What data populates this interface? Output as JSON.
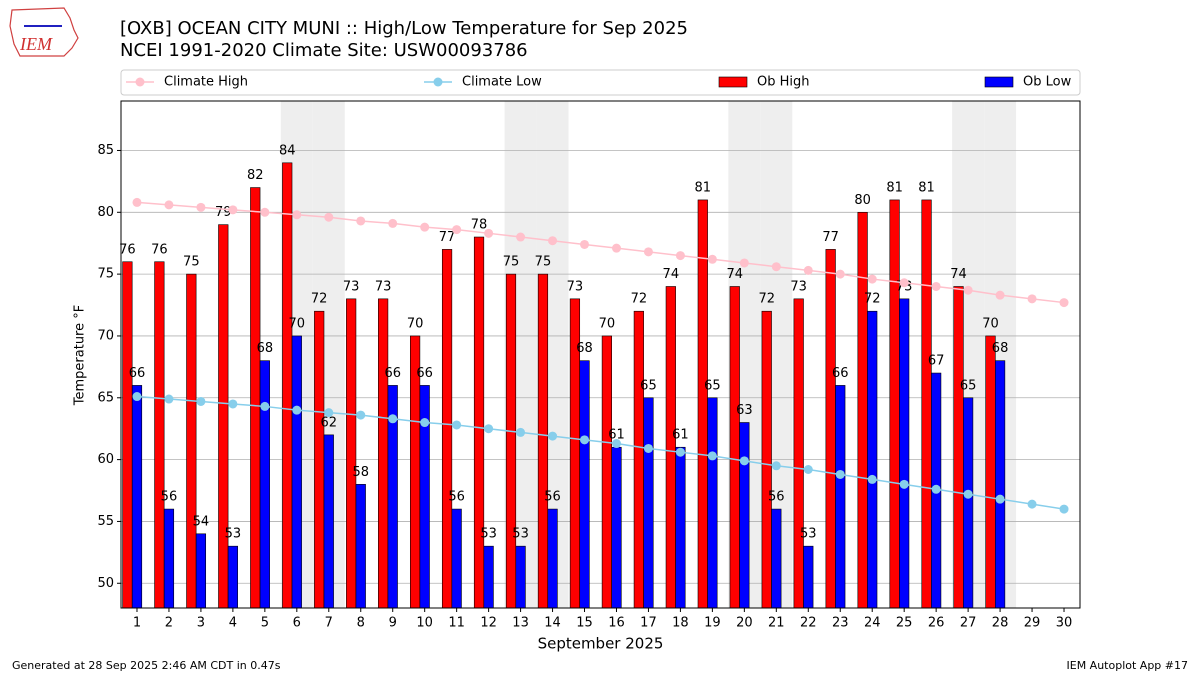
{
  "chart_data": {
    "type": "bar",
    "title": "[OXB] OCEAN CITY MUNI :: High/Low Temperature for Sep 2025",
    "subtitle": "NCEI 1991-2020 Climate Site: USW00093786",
    "x_label": "September 2025",
    "y_label": "Temperature °F",
    "footer_left": "Generated at 28 Sep 2025 2:46 AM CDT in 0.47s",
    "footer_right": "IEM Autoplot App #17",
    "logo_text": "IEM",
    "x": [
      1,
      2,
      3,
      4,
      5,
      6,
      7,
      8,
      9,
      10,
      11,
      12,
      13,
      14,
      15,
      16,
      17,
      18,
      19,
      20,
      21,
      22,
      23,
      24,
      25,
      26,
      27,
      28,
      29,
      30
    ],
    "xlim": [
      0.5,
      30.5
    ],
    "ylim": [
      48,
      89
    ],
    "yticks": [
      50,
      55,
      60,
      65,
      70,
      75,
      80,
      85
    ],
    "grid": true,
    "weekend_days": [
      6,
      7,
      13,
      14,
      20,
      21,
      27,
      28
    ],
    "series": [
      {
        "name": "Climate High",
        "kind": "line",
        "color": "#ffc0cb",
        "values": [
          80.8,
          80.6,
          80.4,
          80.2,
          80.0,
          79.8,
          79.6,
          79.3,
          79.1,
          78.8,
          78.6,
          78.3,
          78.0,
          77.7,
          77.4,
          77.1,
          76.8,
          76.5,
          76.2,
          75.9,
          75.6,
          75.3,
          75.0,
          74.6,
          74.3,
          74.0,
          73.7,
          73.3,
          73.0,
          72.7
        ]
      },
      {
        "name": "Climate Low",
        "kind": "line",
        "color": "#87ceeb",
        "values": [
          65.1,
          64.9,
          64.7,
          64.5,
          64.3,
          64.0,
          63.8,
          63.6,
          63.3,
          63.0,
          62.8,
          62.5,
          62.2,
          61.9,
          61.6,
          61.3,
          60.9,
          60.6,
          60.3,
          59.9,
          59.5,
          59.2,
          58.8,
          58.4,
          58.0,
          57.6,
          57.2,
          56.8,
          56.4,
          56.0
        ]
      },
      {
        "name": "Ob High",
        "kind": "bar",
        "color": "#ff0000",
        "values": [
          76,
          76,
          75,
          79,
          82,
          84,
          72,
          73,
          73,
          70,
          77,
          78,
          75,
          75,
          73,
          70,
          72,
          74,
          81,
          74,
          72,
          73,
          77,
          80,
          81,
          81,
          74,
          70,
          null,
          null
        ]
      },
      {
        "name": "Ob Low",
        "kind": "bar",
        "color": "#0000ff",
        "values": [
          66,
          56,
          54,
          53,
          68,
          70,
          62,
          58,
          66,
          66,
          56,
          53,
          53,
          56,
          68,
          61,
          65,
          61,
          65,
          63,
          56,
          53,
          66,
          72,
          73,
          67,
          65,
          68,
          null,
          null
        ]
      }
    ]
  }
}
